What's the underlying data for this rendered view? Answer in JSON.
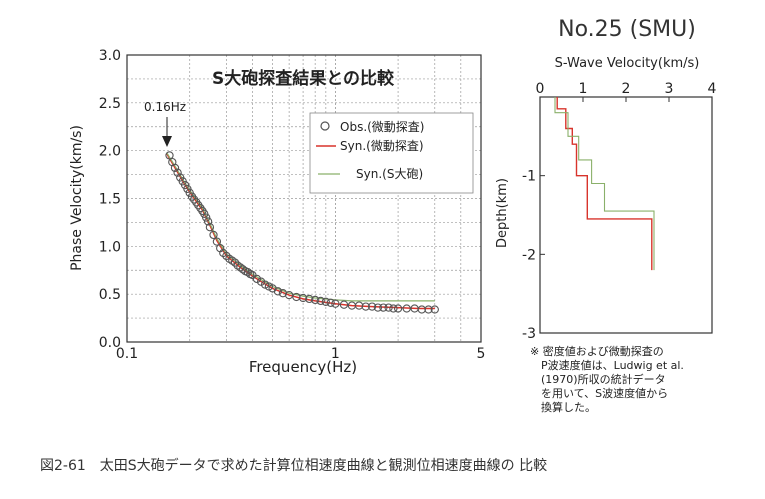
{
  "chart_data": [
    {
      "type": "scatter",
      "title": "S大砲探査結果との比較",
      "xlabel": "Frequency(Hz)",
      "ylabel": "Phase Velocity(km/s)",
      "x_scale": "log",
      "xlim": [
        0.1,
        5
      ],
      "ylim": [
        0,
        3
      ],
      "x_ticks": [
        "0.1",
        "1",
        "5"
      ],
      "y_ticks": [
        "0.0",
        "0.5",
        "1.0",
        "1.5",
        "2.0",
        "2.5",
        "3.0"
      ],
      "annotation": "0.16Hz",
      "annotation_x": 0.16,
      "grid": true,
      "legend_position": "top-right",
      "series": [
        {
          "name": "Obs.(微動探査)",
          "style": "open-circles",
          "color": "#555555",
          "x": [
            0.16,
            0.165,
            0.17,
            0.175,
            0.18,
            0.185,
            0.19,
            0.195,
            0.2,
            0.205,
            0.21,
            0.215,
            0.22,
            0.225,
            0.23,
            0.235,
            0.24,
            0.245,
            0.25,
            0.26,
            0.27,
            0.28,
            0.29,
            0.3,
            0.31,
            0.32,
            0.33,
            0.34,
            0.35,
            0.36,
            0.37,
            0.38,
            0.39,
            0.4,
            0.42,
            0.44,
            0.46,
            0.48,
            0.5,
            0.53,
            0.56,
            0.6,
            0.65,
            0.7,
            0.75,
            0.8,
            0.85,
            0.9,
            0.95,
            1.0,
            1.1,
            1.2,
            1.3,
            1.4,
            1.5,
            1.6,
            1.7,
            1.8,
            1.9,
            2.0,
            2.2,
            2.4,
            2.6,
            2.8,
            3.0
          ],
          "y": [
            1.95,
            1.88,
            1.82,
            1.77,
            1.72,
            1.68,
            1.64,
            1.6,
            1.56,
            1.52,
            1.49,
            1.46,
            1.43,
            1.4,
            1.37,
            1.34,
            1.3,
            1.26,
            1.2,
            1.12,
            1.05,
            0.98,
            0.93,
            0.9,
            0.87,
            0.85,
            0.83,
            0.8,
            0.78,
            0.76,
            0.74,
            0.73,
            0.71,
            0.7,
            0.66,
            0.63,
            0.6,
            0.58,
            0.56,
            0.53,
            0.51,
            0.49,
            0.47,
            0.46,
            0.45,
            0.44,
            0.43,
            0.42,
            0.41,
            0.4,
            0.39,
            0.38,
            0.38,
            0.37,
            0.37,
            0.36,
            0.36,
            0.36,
            0.35,
            0.35,
            0.35,
            0.35,
            0.34,
            0.34,
            0.34
          ]
        },
        {
          "name": "Syn.(微動探査)",
          "style": "line",
          "color": "#d8342c",
          "x": [
            0.155,
            0.17,
            0.19,
            0.21,
            0.23,
            0.25,
            0.27,
            0.3,
            0.35,
            0.4,
            0.45,
            0.5,
            0.6,
            0.7,
            0.8,
            1.0,
            1.2,
            1.5,
            2.0,
            2.5,
            3.0
          ],
          "y": [
            1.97,
            1.82,
            1.64,
            1.5,
            1.38,
            1.22,
            1.06,
            0.9,
            0.78,
            0.69,
            0.62,
            0.56,
            0.49,
            0.45,
            0.43,
            0.4,
            0.38,
            0.37,
            0.36,
            0.35,
            0.35
          ]
        },
        {
          "name": "Syn.(S大砲)",
          "style": "line",
          "color": "#8ab06a",
          "x": [
            0.155,
            0.17,
            0.19,
            0.21,
            0.23,
            0.25,
            0.27,
            0.3,
            0.35,
            0.4,
            0.45,
            0.5,
            0.6,
            0.7,
            0.8,
            1.0,
            1.2,
            1.5,
            2.0,
            2.5,
            3.0
          ],
          "y": [
            1.98,
            1.84,
            1.66,
            1.52,
            1.4,
            1.24,
            1.08,
            0.92,
            0.8,
            0.71,
            0.64,
            0.58,
            0.51,
            0.48,
            0.46,
            0.44,
            0.43,
            0.43,
            0.43,
            0.43,
            0.43
          ]
        }
      ]
    },
    {
      "type": "line",
      "title": "No.25 (SMU)",
      "xlabel": "S-Wave Velocity(km/s)",
      "ylabel": "Depth(km)",
      "xlim": [
        0,
        4
      ],
      "ylim": [
        -3,
        0
      ],
      "x_ticks": [
        "0",
        "1",
        "2",
        "3",
        "4"
      ],
      "y_ticks": [
        "-1",
        "-2",
        "-3"
      ],
      "series": [
        {
          "name": "微動探査",
          "color": "#d8342c",
          "x": [
            0.4,
            0.4,
            0.6,
            0.6,
            0.75,
            0.75,
            0.85,
            0.85,
            1.1,
            1.1,
            2.6,
            2.6
          ],
          "y": [
            0,
            -0.15,
            -0.15,
            -0.4,
            -0.4,
            -0.6,
            -0.6,
            -1.0,
            -1.0,
            -1.55,
            -1.55,
            -2.2
          ]
        },
        {
          "name": "S大砲",
          "color": "#8ab06a",
          "x": [
            0.35,
            0.35,
            0.65,
            0.65,
            0.9,
            0.9,
            1.2,
            1.2,
            1.5,
            1.5,
            2.65,
            2.65
          ],
          "y": [
            0,
            -0.2,
            -0.2,
            -0.5,
            -0.5,
            -0.8,
            -0.8,
            -1.1,
            -1.1,
            -1.45,
            -1.45,
            -2.2
          ]
        }
      ]
    }
  ],
  "note_lines": [
    "※ 密度値および微動探査の",
    "P波速度値は、Ludwig et al.",
    "(1970)所収の統計データ",
    "を用いて、S波速度値から",
    "換算した。"
  ],
  "caption": "図2-61　太田S大砲データで求めた計算位相速度曲線と観測位相速度曲線の 比較"
}
